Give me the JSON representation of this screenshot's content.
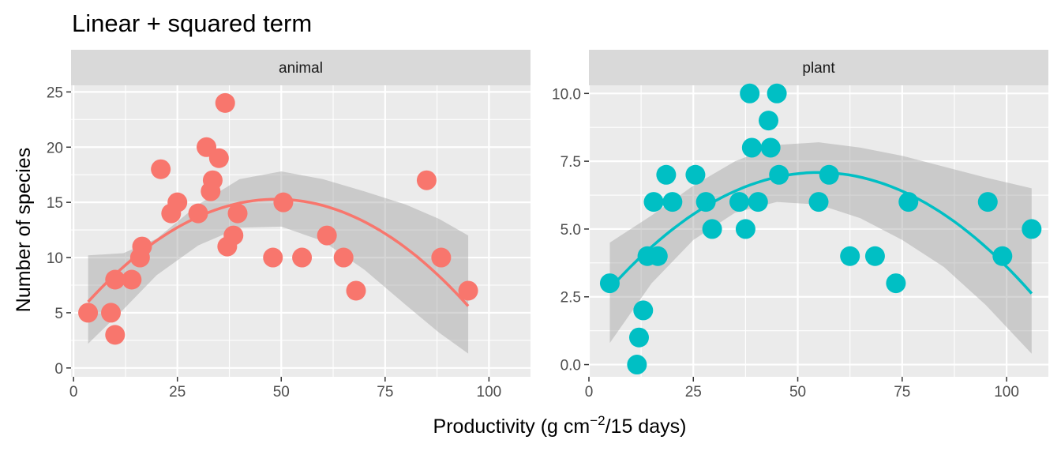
{
  "chart_data": {
    "type": "scatter",
    "title": "Linear + squared term",
    "xlabel": "Productivity (g cm",
    "xlabel_sup": "−2",
    "xlabel_suffix": "/15 days)",
    "ylabel": "Number of species",
    "colors": {
      "animal": "#F8766D",
      "plant": "#00BFC4",
      "ribbon": "#999999",
      "panel": "#EBEBEB",
      "strip": "#D9D9D9"
    },
    "grid": true,
    "panels": [
      {
        "strip": "animal",
        "xlim": [
          -0.6,
          110
        ],
        "ylim": [
          -0.8,
          25.6
        ],
        "xticks": [
          0,
          25,
          50,
          75,
          100
        ],
        "xtick_labels": [
          "0",
          "25",
          "50",
          "75",
          "100"
        ],
        "yticks": [
          0,
          5,
          10,
          15,
          20,
          25
        ],
        "ytick_labels": [
          "0",
          "5",
          "10",
          "15",
          "20",
          "25"
        ],
        "points": [
          [
            3.5,
            5
          ],
          [
            9,
            5
          ],
          [
            10,
            3
          ],
          [
            10,
            8
          ],
          [
            14,
            8
          ],
          [
            16,
            10
          ],
          [
            16.5,
            11
          ],
          [
            21,
            18
          ],
          [
            23.5,
            14
          ],
          [
            25,
            15
          ],
          [
            30,
            14
          ],
          [
            32,
            20
          ],
          [
            33,
            16
          ],
          [
            33.5,
            17
          ],
          [
            35,
            19
          ],
          [
            36.5,
            24
          ],
          [
            37,
            11
          ],
          [
            38.5,
            12
          ],
          [
            39.5,
            14
          ],
          [
            48,
            10
          ],
          [
            50.5,
            15
          ],
          [
            55,
            10
          ],
          [
            61,
            12
          ],
          [
            65,
            10
          ],
          [
            68,
            7
          ],
          [
            85,
            17
          ],
          [
            88.5,
            10
          ],
          [
            95,
            7
          ]
        ],
        "fit": {
          "x_range": [
            3.5,
            95
          ],
          "intercept": 4.5,
          "b1": 0.4422,
          "b2": -0.004532
        },
        "ribbon": {
          "x": [
            3.5,
            12,
            20,
            30,
            40,
            50,
            60,
            70,
            80,
            88,
            95
          ],
          "lower": [
            2.2,
            5.3,
            8.4,
            11.1,
            12.7,
            12.8,
            11.5,
            8.9,
            5.7,
            3.2,
            1.3
          ],
          "upper": [
            10.2,
            10.4,
            11.7,
            14.8,
            17.1,
            17.8,
            17.1,
            16.0,
            14.8,
            13.5,
            12.0
          ]
        }
      },
      {
        "strip": "plant",
        "xlim": [
          0,
          110
        ],
        "ylim": [
          -0.45,
          10.3
        ],
        "xticks": [
          0,
          25,
          50,
          75,
          100
        ],
        "xtick_labels": [
          "0",
          "25",
          "50",
          "75",
          "100"
        ],
        "yticks": [
          0,
          2.5,
          5,
          7.5,
          10
        ],
        "ytick_labels": [
          "0.0",
          "2.5",
          "5.0",
          "7.5",
          "10.0"
        ],
        "points": [
          [
            5,
            3
          ],
          [
            11.5,
            0
          ],
          [
            12,
            1
          ],
          [
            13,
            2
          ],
          [
            14,
            4
          ],
          [
            16.5,
            4
          ],
          [
            15.5,
            6
          ],
          [
            18.5,
            7
          ],
          [
            20,
            6
          ],
          [
            25.5,
            7
          ],
          [
            28,
            6
          ],
          [
            29.5,
            5
          ],
          [
            36,
            6
          ],
          [
            37.5,
            5
          ],
          [
            38.5,
            10
          ],
          [
            39,
            8
          ],
          [
            40.5,
            6
          ],
          [
            43,
            9
          ],
          [
            43.5,
            8
          ],
          [
            45,
            10
          ],
          [
            45.5,
            7
          ],
          [
            55,
            6
          ],
          [
            57.5,
            7
          ],
          [
            62.5,
            4
          ],
          [
            68.5,
            4
          ],
          [
            73.5,
            3
          ],
          [
            76.5,
            6
          ],
          [
            95.5,
            6
          ],
          [
            99,
            4
          ],
          [
            106,
            5
          ]
        ],
        "fit": {
          "x_range": [
            5,
            106
          ],
          "intercept": 1.9,
          "b1": 0.1886,
          "b2": -0.001715
        },
        "ribbon": {
          "x": [
            5,
            15,
            25,
            35,
            45,
            55,
            65,
            75,
            85,
            95,
            106
          ],
          "lower": [
            0.8,
            3.0,
            4.6,
            5.6,
            6.0,
            5.9,
            5.4,
            4.6,
            3.6,
            2.2,
            0.4
          ],
          "upper": [
            4.5,
            5.5,
            6.6,
            7.5,
            8.1,
            8.2,
            8.0,
            7.7,
            7.3,
            6.9,
            6.5
          ]
        }
      }
    ]
  }
}
